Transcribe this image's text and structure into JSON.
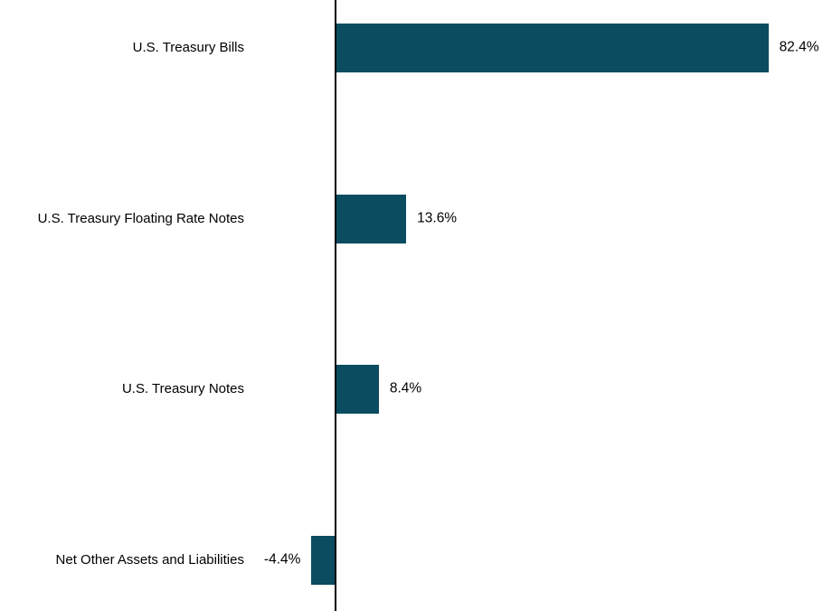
{
  "chart_data": {
    "type": "bar",
    "orientation": "horizontal",
    "title": "",
    "xlabel": "",
    "ylabel": "",
    "categories": [
      "U.S. Treasury Bills",
      "U.S. Treasury Floating Rate Notes",
      "U.S. Treasury Notes",
      "Net Other Assets and Liabilities"
    ],
    "values": [
      82.4,
      13.6,
      8.4,
      -4.4
    ],
    "value_labels": [
      "82.4%",
      "13.6%",
      "8.4%",
      "-4.4%"
    ],
    "grid": false,
    "legend": false,
    "axis_baseline_value": 0,
    "xlim": [
      -10,
      92
    ],
    "colors": {
      "bar": "#0b4c61",
      "axis": "#000000",
      "text": "#000000",
      "background": "#ffffff"
    }
  }
}
